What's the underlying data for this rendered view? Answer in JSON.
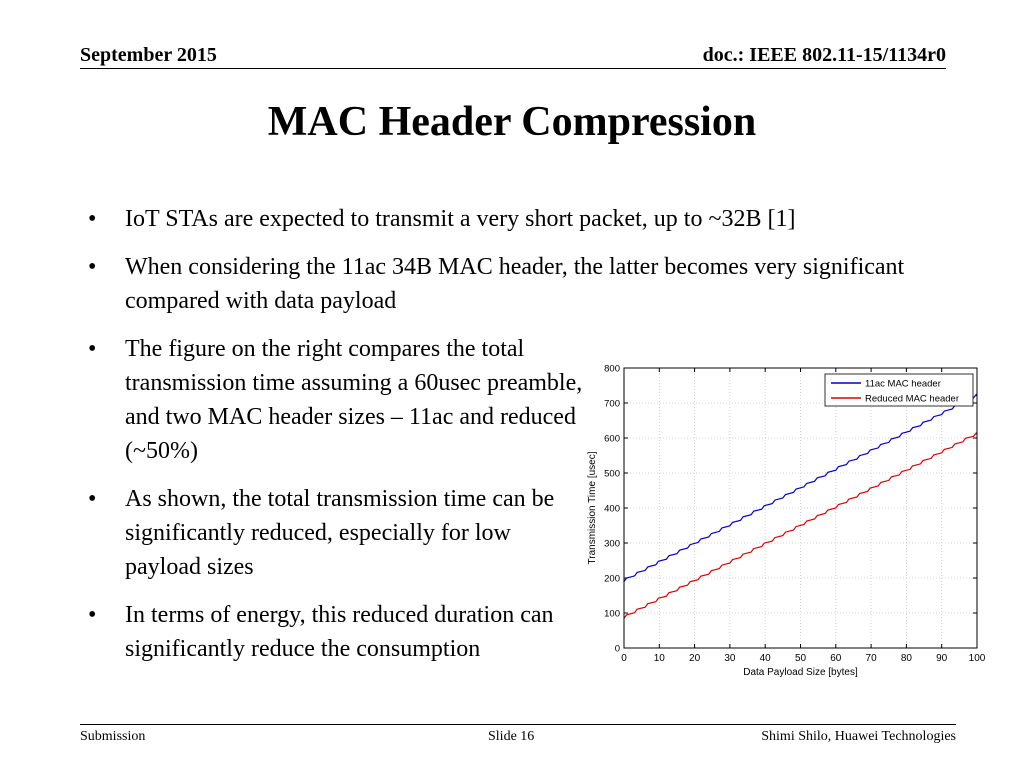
{
  "header": {
    "date": "September 2015",
    "doc": "doc.: IEEE 802.11-15/1134r0"
  },
  "title": "MAC Header Compression",
  "bullets": [
    {
      "symbol": "•",
      "text": "IoT STAs are expected to transmit a very short packet, up to ~32B [1]"
    },
    {
      "symbol": "•",
      "text": "When considering the 11ac 34B MAC header, the latter becomes very significant compared with data payload"
    },
    {
      "symbol": "•",
      "text": "The figure on the right compares the total transmission time assuming  a 60usec preamble, and two MAC header sizes – 11ac and reduced (~50%)"
    },
    {
      "symbol": "•",
      "text": "As shown, the total transmission time can be significantly reduced, especially for low payload sizes"
    },
    {
      "symbol": "•",
      "text": "In terms of energy, this reduced duration can significantly reduce the consumption"
    }
  ],
  "chart_data": {
    "type": "line",
    "title": "",
    "xlabel": "Data Payload Size [bytes]",
    "ylabel": "Transmission Time [usec]",
    "xlim": [
      0,
      100
    ],
    "ylim": [
      0,
      800
    ],
    "xticks": [
      0,
      10,
      20,
      30,
      40,
      50,
      60,
      70,
      80,
      90,
      100
    ],
    "yticks": [
      0,
      100,
      200,
      300,
      400,
      500,
      600,
      700,
      800
    ],
    "grid": true,
    "legend_position": "top-right",
    "series": [
      {
        "name": "11ac MAC header",
        "color": "#0000cc",
        "x": [
          0,
          100
        ],
        "y": [
          190,
          720
        ]
      },
      {
        "name": "Reduced MAC header",
        "color": "#dd0000",
        "x": [
          0,
          100
        ],
        "y": [
          85,
          610
        ]
      }
    ]
  },
  "footer": {
    "left": "Submission",
    "center": "Slide 16",
    "right": "Shimi Shilo, Huawei Technologies"
  }
}
